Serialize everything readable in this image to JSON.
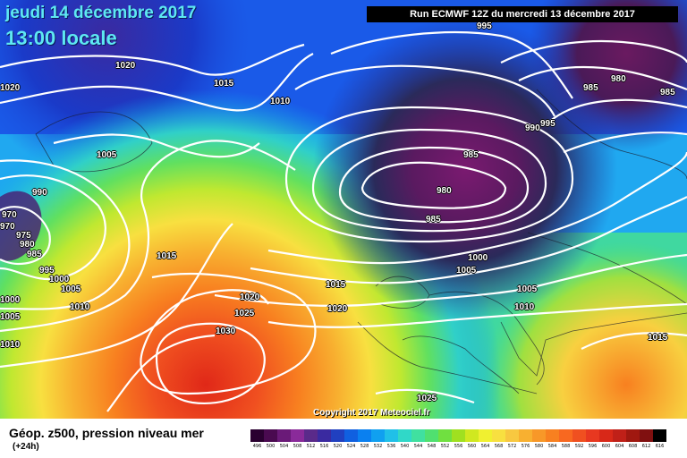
{
  "header": {
    "date": "jeudi 14 décembre 2017",
    "time": "13:00 locale",
    "run": "Run ECMWF 12Z du mercredi 13 décembre 2017"
  },
  "footer": {
    "title": "Géop. z500, pression niveau mer",
    "subtitle": "(+24h)",
    "copyright": "Copyright 2017 Meteociel.fr"
  },
  "legend": {
    "labels": [
      "496",
      "500",
      "504",
      "508",
      "512",
      "516",
      "520",
      "524",
      "528",
      "532",
      "536",
      "540",
      "544",
      "548",
      "552",
      "556",
      "560",
      "564",
      "568",
      "572",
      "576",
      "580",
      "584",
      "588",
      "592",
      "596",
      "600",
      "604",
      "608",
      "612",
      "616"
    ],
    "colors": [
      "#2a0030",
      "#4a0a50",
      "#6a1a78",
      "#8a2a9a",
      "#5a2a8a",
      "#3a2aa0",
      "#2040c0",
      "#1060e0",
      "#0a80f0",
      "#10a0f0",
      "#20c0e8",
      "#30d8c8",
      "#40e0a0",
      "#50e070",
      "#70e040",
      "#a0e020",
      "#d0e820",
      "#f0f030",
      "#f8e040",
      "#f8c840",
      "#f8b030",
      "#f89828",
      "#f88020",
      "#f86820",
      "#f05020",
      "#e83820",
      "#d82818",
      "#c02018",
      "#a01810",
      "#801010",
      "#000000"
    ]
  },
  "isobars": [
    {
      "v": "1020"
    },
    {
      "v": "1015"
    },
    {
      "v": "1010"
    },
    {
      "v": "1020"
    },
    {
      "v": "1005"
    },
    {
      "v": "990"
    },
    {
      "v": "970"
    },
    {
      "v": "975"
    },
    {
      "v": "980"
    },
    {
      "v": "985"
    },
    {
      "v": "995"
    },
    {
      "v": "1000"
    },
    {
      "v": "1005"
    },
    {
      "v": "1010"
    },
    {
      "v": "1015"
    },
    {
      "v": "1020"
    },
    {
      "v": "1025"
    },
    {
      "v": "1030"
    },
    {
      "v": "1015"
    },
    {
      "v": "1020"
    },
    {
      "v": "1000"
    },
    {
      "v": "1005"
    },
    {
      "v": "985"
    },
    {
      "v": "980"
    },
    {
      "v": "985"
    },
    {
      "v": "995"
    },
    {
      "v": "990"
    },
    {
      "v": "980"
    },
    {
      "v": "985"
    },
    {
      "v": "985"
    },
    {
      "v": "1005"
    },
    {
      "v": "1010"
    },
    {
      "v": "1015"
    },
    {
      "v": "1025"
    },
    {
      "v": "995"
    },
    {
      "v": "1000"
    },
    {
      "v": "1005"
    },
    {
      "v": "1010"
    },
    {
      "v": "970"
    }
  ]
}
